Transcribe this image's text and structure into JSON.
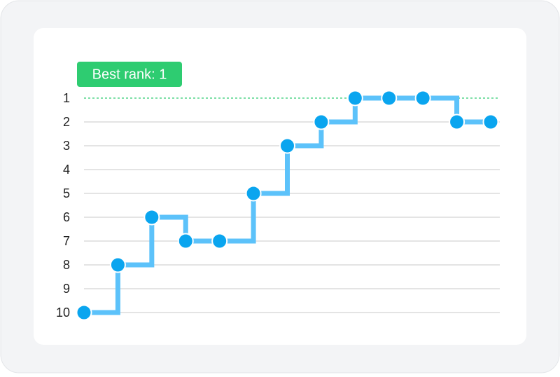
{
  "chart_data": {
    "type": "step-line",
    "categories": [
      null,
      null,
      null,
      null,
      null,
      null,
      null,
      null,
      null,
      null,
      null,
      null,
      null
    ],
    "values": [
      10,
      8,
      6,
      7,
      7,
      5,
      3,
      2,
      1,
      1,
      1,
      2,
      2
    ],
    "color": "#0aa5ef",
    "line_color": "#5cc2fa",
    "ylim": [
      1,
      10
    ],
    "y_inverted": true,
    "yticks": [
      1,
      2,
      3,
      4,
      5,
      6,
      7,
      8,
      9,
      10
    ],
    "grid": true,
    "reference_line": {
      "value": 1,
      "label": "Best rank: 1",
      "color": "#2ecc71"
    }
  }
}
